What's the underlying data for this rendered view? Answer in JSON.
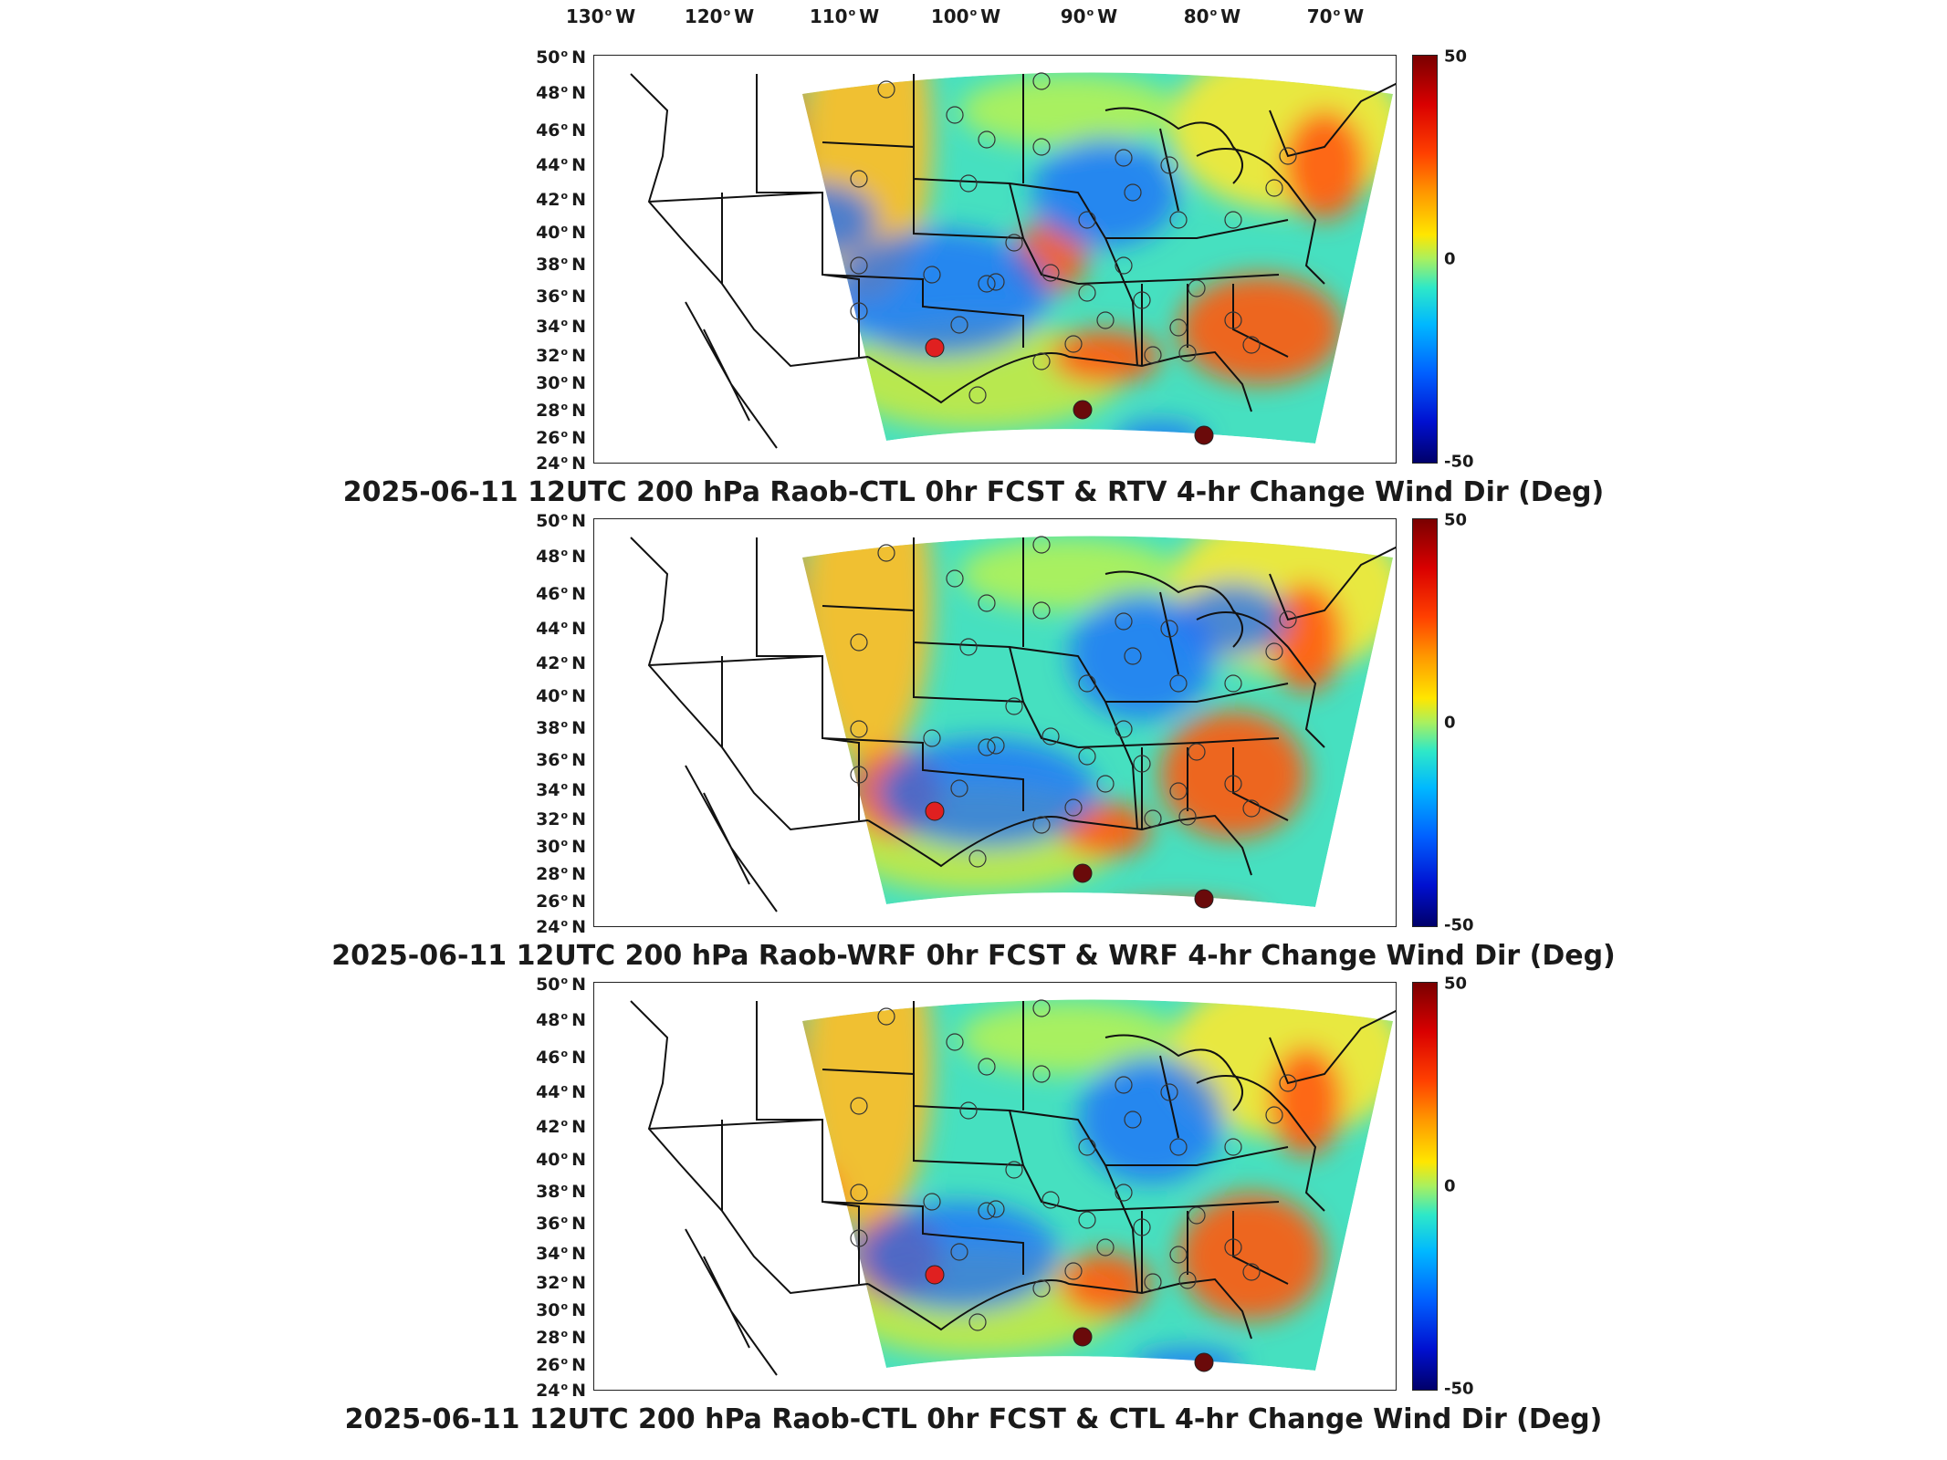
{
  "lon_ticks": [
    "130",
    "120",
    "110",
    "100",
    "90",
    "80",
    "70"
  ],
  "lon_suffix": "W",
  "lat_ticks": [
    "50",
    "48",
    "46",
    "44",
    "42",
    "40",
    "38",
    "36",
    "34",
    "32",
    "30",
    "28",
    "26",
    "24"
  ],
  "lat_suffix": "N",
  "colorbar": {
    "max_label": "50",
    "mid_label": "0",
    "min_label": "-50",
    "colors": [
      "#7a0000",
      "#d90000",
      "#ff4000",
      "#ff9a00",
      "#ffe600",
      "#a8f060",
      "#2ee8c8",
      "#00b8ff",
      "#0060ff",
      "#0010d0",
      "#00006a"
    ]
  },
  "panels": [
    {
      "title": "2025-06-11 12UTC 200 hPa Raob-CTL 0hr FCST & RTV 4-hr Change Wind Dir (Deg)"
    },
    {
      "title": "2025-06-11 12UTC 200 hPa Raob-WRF 0hr FCST & WRF 4-hr Change Wind Dir (Deg)"
    },
    {
      "title": "2025-06-11 12UTC 200 hPa Raob-CTL 0hr FCST & CTL 4-hr Change Wind Dir (Deg)"
    }
  ]
}
